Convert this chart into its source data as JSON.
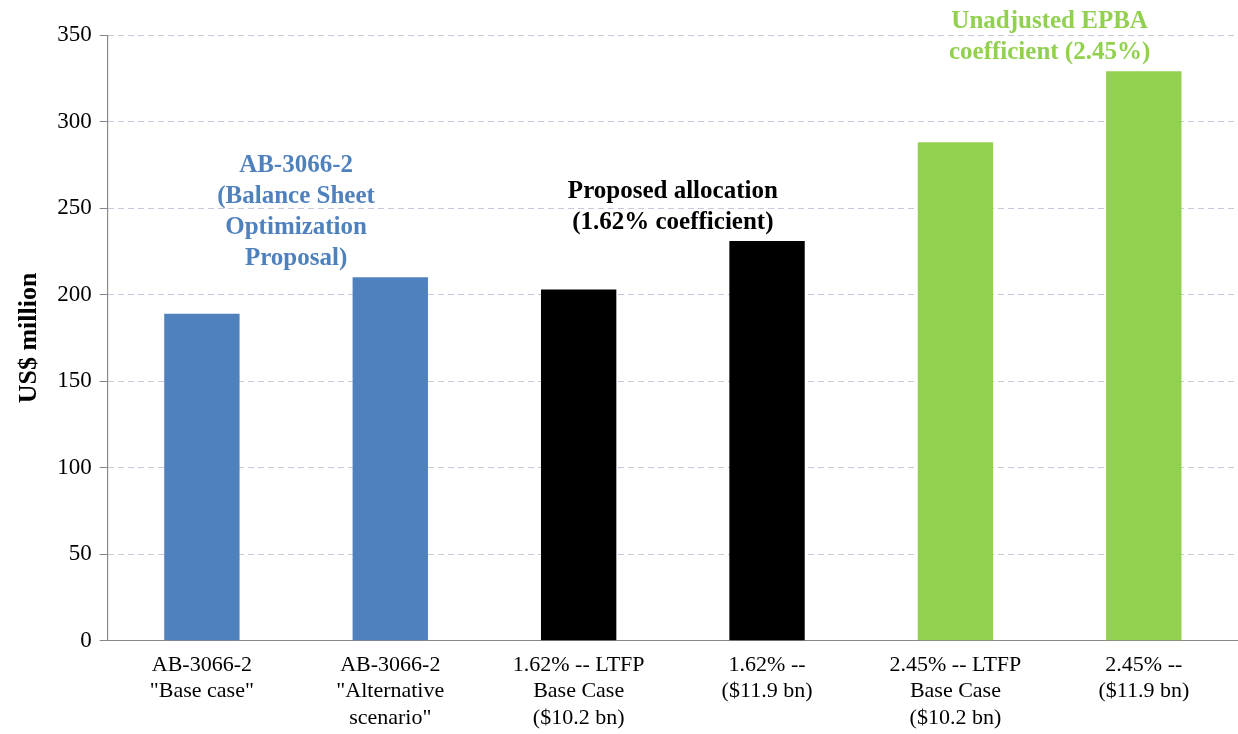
{
  "chart_data": {
    "type": "bar",
    "categories": [
      "AB-3066-2\n\"Base case\"",
      "AB-3066-2\n\"Alternative\nscenario\"",
      "1.62% -- LTFP\nBase Case\n($10.2 bn)",
      "1.62% --\n($11.9 bn)",
      "2.45% -- LTFP\nBase Case\n($10.2 bn)",
      "2.45% --\n($11.9 bn)"
    ],
    "values": [
      189,
      210,
      203,
      231,
      288,
      329
    ],
    "colors": [
      "#4f81bd",
      "#4f81bd",
      "#000000",
      "#000000",
      "#92d050",
      "#92d050"
    ],
    "ylabel": "US$ million",
    "ylim": [
      0,
      350
    ],
    "yticks": [
      0,
      50,
      100,
      150,
      200,
      250,
      300,
      350
    ],
    "grid": "y",
    "annotations": [
      "AB-3066-2\n(Balance Sheet\nOptimization\nProposal)",
      "Proposed allocation\n(1.62% coefficient)",
      "Unadjusted EPBA\ncoefficient (2.45%)"
    ]
  }
}
